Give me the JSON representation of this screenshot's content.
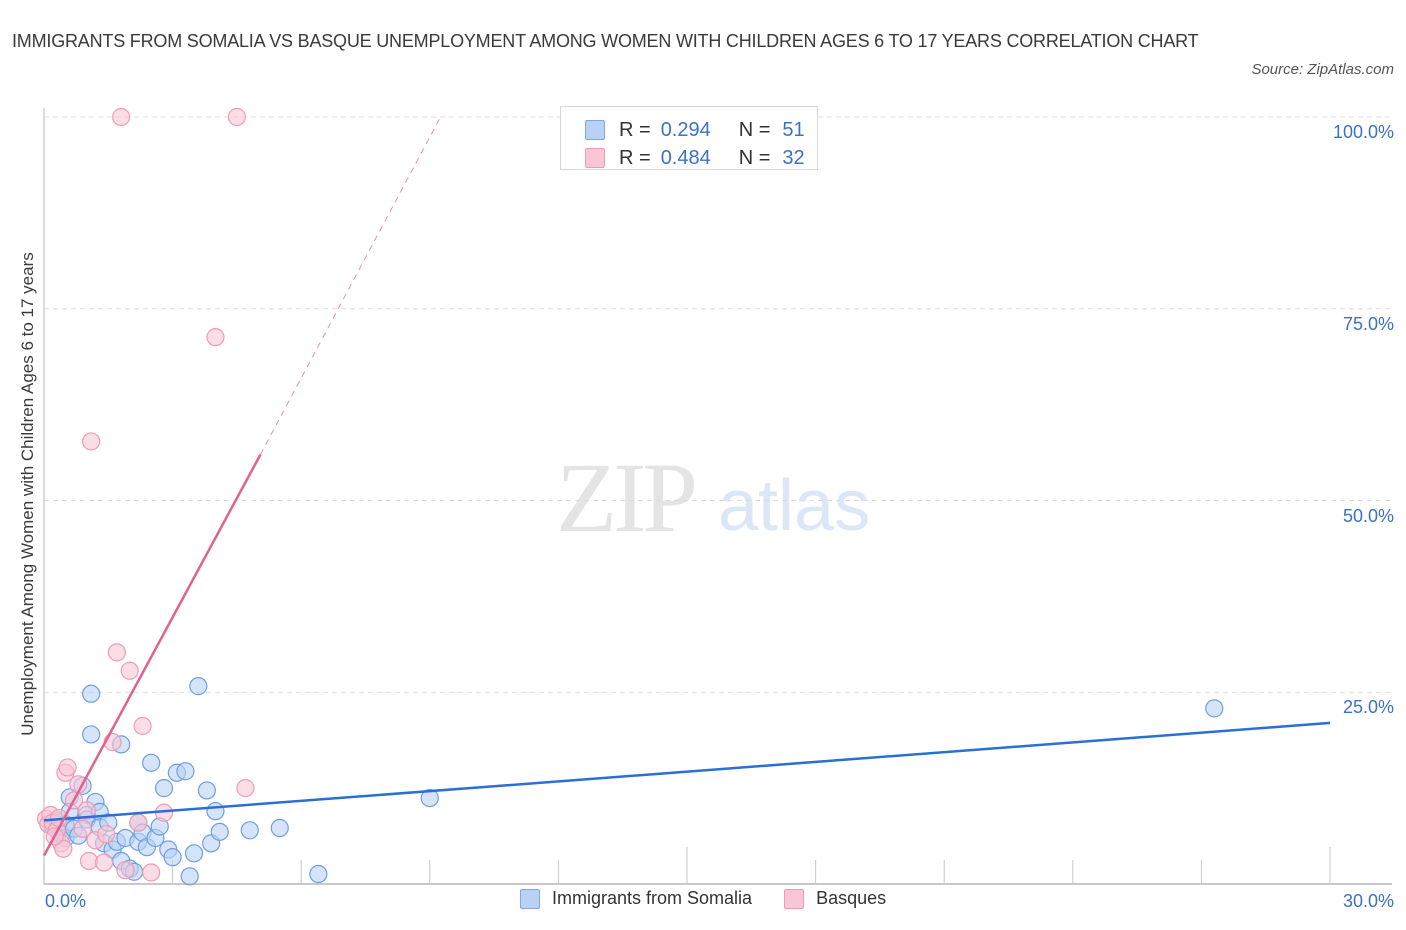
{
  "header": {
    "title": "IMMIGRANTS FROM SOMALIA VS BASQUE UNEMPLOYMENT AMONG WOMEN WITH CHILDREN AGES 6 TO 17 YEARS CORRELATION CHART",
    "source": "Source: ZipAtlas.com"
  },
  "watermark": {
    "zip": "ZIP",
    "atlas": "atlas"
  },
  "legend_top": {
    "rows": [
      {
        "r_label": "R =",
        "r_value": "0.294",
        "n_label": "N =",
        "n_value": "51",
        "color": "#b9d2f4"
      },
      {
        "r_label": "R =",
        "r_value": "0.484",
        "n_label": "N =",
        "n_value": "32",
        "color": "#f9c6d6"
      }
    ]
  },
  "legend_bottom": {
    "items": [
      {
        "label": "Immigrants from Somalia",
        "color": "#b9d2f4"
      },
      {
        "label": "Basques",
        "color": "#f9c6d6"
      }
    ]
  },
  "axes": {
    "ylabel": "Unemployment Among Women with Children Ages 6 to 17 years",
    "y_ticks": [
      "100.0%",
      "75.0%",
      "50.0%",
      "25.0%"
    ],
    "x_ticks": [
      "0.0%",
      "30.0%"
    ]
  },
  "chart_data": {
    "type": "scatter",
    "title": "Immigrants from Somalia vs Basque Unemployment Among Women with Children Ages 6 to 17 years Correlation Chart",
    "xlabel": "",
    "ylabel": "Unemployment Among Women with Children Ages 6 to 17 years",
    "xlim": [
      0,
      30
    ],
    "ylim": [
      0,
      100
    ],
    "x_unit": "%",
    "y_unit": "%",
    "grid": {
      "horizontal_dashed": [
        25,
        50,
        75,
        100
      ],
      "vertical": false
    },
    "legend_position": "top-center and bottom",
    "series": [
      {
        "name": "Immigrants from Somalia",
        "color": "#6f9fe0",
        "fill": "#b9d2f4",
        "R": 0.294,
        "N": 51,
        "trend": {
          "x": [
            0,
            30
          ],
          "y": [
            8.3,
            21.0
          ],
          "style": "solid",
          "color": "#2a6fd4"
        },
        "points": [
          [
            0.2,
            7.5
          ],
          [
            0.3,
            7.0
          ],
          [
            0.3,
            8.2
          ],
          [
            0.4,
            6.5
          ],
          [
            0.5,
            7.8
          ],
          [
            0.5,
            6.0
          ],
          [
            0.6,
            11.3
          ],
          [
            0.6,
            9.4
          ],
          [
            0.7,
            7.2
          ],
          [
            0.8,
            6.3
          ],
          [
            0.9,
            12.8
          ],
          [
            1.0,
            9.0
          ],
          [
            1.0,
            8.4
          ],
          [
            1.1,
            24.8
          ],
          [
            1.1,
            19.5
          ],
          [
            1.2,
            10.7
          ],
          [
            1.3,
            9.4
          ],
          [
            1.3,
            7.4
          ],
          [
            1.4,
            5.3
          ],
          [
            1.5,
            8.0
          ],
          [
            1.6,
            4.5
          ],
          [
            1.7,
            5.5
          ],
          [
            1.8,
            18.2
          ],
          [
            1.8,
            3.0
          ],
          [
            1.9,
            6.0
          ],
          [
            2.0,
            2.0
          ],
          [
            2.1,
            1.6
          ],
          [
            2.2,
            5.5
          ],
          [
            2.2,
            8.0
          ],
          [
            2.3,
            6.7
          ],
          [
            2.4,
            4.8
          ],
          [
            2.5,
            15.8
          ],
          [
            2.6,
            6.0
          ],
          [
            2.8,
            12.5
          ],
          [
            2.9,
            4.5
          ],
          [
            3.0,
            3.5
          ],
          [
            3.1,
            14.5
          ],
          [
            3.3,
            14.7
          ],
          [
            3.4,
            1.0
          ],
          [
            3.5,
            4.0
          ],
          [
            3.6,
            25.8
          ],
          [
            3.8,
            12.2
          ],
          [
            3.9,
            5.3
          ],
          [
            4.0,
            9.5
          ],
          [
            4.1,
            6.8
          ],
          [
            4.8,
            7.0
          ],
          [
            5.5,
            7.3
          ],
          [
            6.4,
            1.3
          ],
          [
            9.0,
            11.2
          ],
          [
            27.3,
            22.9
          ],
          [
            2.7,
            7.5
          ]
        ]
      },
      {
        "name": "Basques",
        "color": "#ee9bb6",
        "fill": "#f9c6d6",
        "R": 0.484,
        "N": 32,
        "trend": {
          "x": [
            0,
            5.05
          ],
          "y": [
            3.7,
            56.0
          ],
          "style": "solid",
          "extended_x": [
            5.05,
            9.25
          ],
          "extended_y": [
            56.0,
            100.0
          ],
          "extended_style": "dashed",
          "color": "#e0628f"
        },
        "points": [
          [
            0.05,
            8.5
          ],
          [
            0.1,
            7.8
          ],
          [
            0.15,
            9.0
          ],
          [
            0.2,
            8.0
          ],
          [
            0.3,
            7.0
          ],
          [
            0.35,
            8.6
          ],
          [
            0.4,
            5.3
          ],
          [
            0.45,
            4.6
          ],
          [
            0.5,
            14.5
          ],
          [
            0.55,
            15.2
          ],
          [
            0.7,
            10.9
          ],
          [
            0.8,
            13.0
          ],
          [
            0.9,
            7.2
          ],
          [
            1.0,
            9.6
          ],
          [
            1.05,
            3.0
          ],
          [
            1.1,
            57.7
          ],
          [
            1.2,
            5.7
          ],
          [
            1.4,
            2.8
          ],
          [
            1.45,
            6.5
          ],
          [
            1.6,
            18.5
          ],
          [
            1.7,
            30.2
          ],
          [
            1.9,
            1.8
          ],
          [
            2.0,
            27.8
          ],
          [
            2.2,
            8.0
          ],
          [
            2.3,
            20.6
          ],
          [
            2.5,
            1.5
          ],
          [
            2.8,
            9.3
          ],
          [
            1.8,
            100.0
          ],
          [
            4.5,
            100.0
          ],
          [
            4.0,
            71.3
          ],
          [
            4.7,
            12.5
          ],
          [
            0.25,
            6.2
          ]
        ]
      }
    ]
  }
}
